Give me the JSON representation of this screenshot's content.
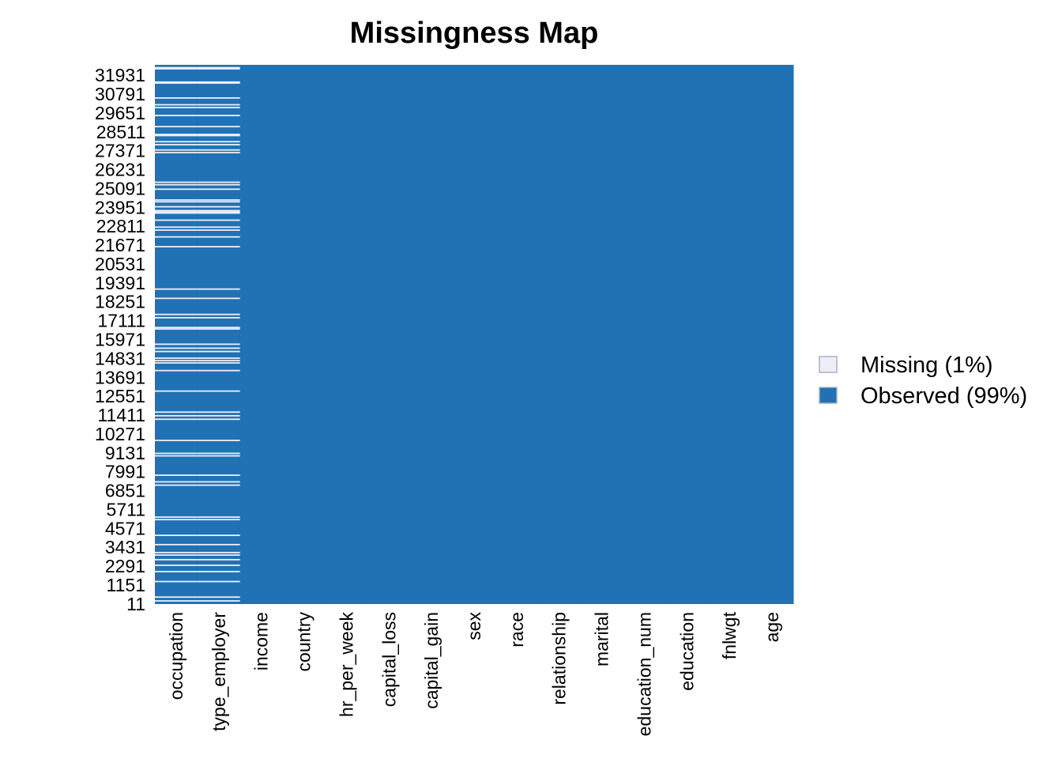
{
  "chart_data": {
    "type": "heatmap",
    "title": "Missingness Map",
    "columns": [
      "occupation",
      "type_employer",
      "income",
      "country",
      "hr_per_week",
      "capital_loss",
      "capital_gain",
      "sex",
      "race",
      "relationship",
      "marital",
      "education_num",
      "education",
      "fnlwgt",
      "age"
    ],
    "row_ticks": [
      "31931",
      "30791",
      "29651",
      "28511",
      "27371",
      "26231",
      "25091",
      "23951",
      "22811",
      "21671",
      "20531",
      "19391",
      "18251",
      "17111",
      "15971",
      "14831",
      "13691",
      "12551",
      "11411",
      "10271",
      "9131",
      "7991",
      "6851",
      "5711",
      "4571",
      "3431",
      "2291",
      "1151",
      "11"
    ],
    "row_range": [
      1,
      32561
    ],
    "columns_with_missing": [
      "occupation",
      "type_employer"
    ],
    "missing_rows_approx": [
      32390,
      32320,
      31520,
      31460,
      30560,
      30150,
      29980,
      29500,
      28830,
      28360,
      28290,
      27920,
      27740,
      27420,
      27260,
      25470,
      25320,
      25050,
      24400,
      24290,
      23990,
      23760,
      23680,
      23610,
      23180,
      22760,
      22580,
      22170,
      21580,
      19020,
      18460,
      17490,
      17290,
      16700,
      16610,
      15690,
      15450,
      15250,
      14850,
      14700,
      14560,
      14100,
      12860,
      11590,
      11370,
      11160,
      9880,
      9100,
      8950,
      7780,
      7380,
      7180,
      5250,
      5100,
      4150,
      3590,
      3110,
      2960,
      2680,
      2340,
      1960,
      1360,
      420,
      190
    ],
    "legend": [
      {
        "label": "Missing (1%)",
        "color": "#eeeef8"
      },
      {
        "label": "Observed (99%)",
        "color": "#2171b5"
      }
    ],
    "legend_position": "right"
  }
}
